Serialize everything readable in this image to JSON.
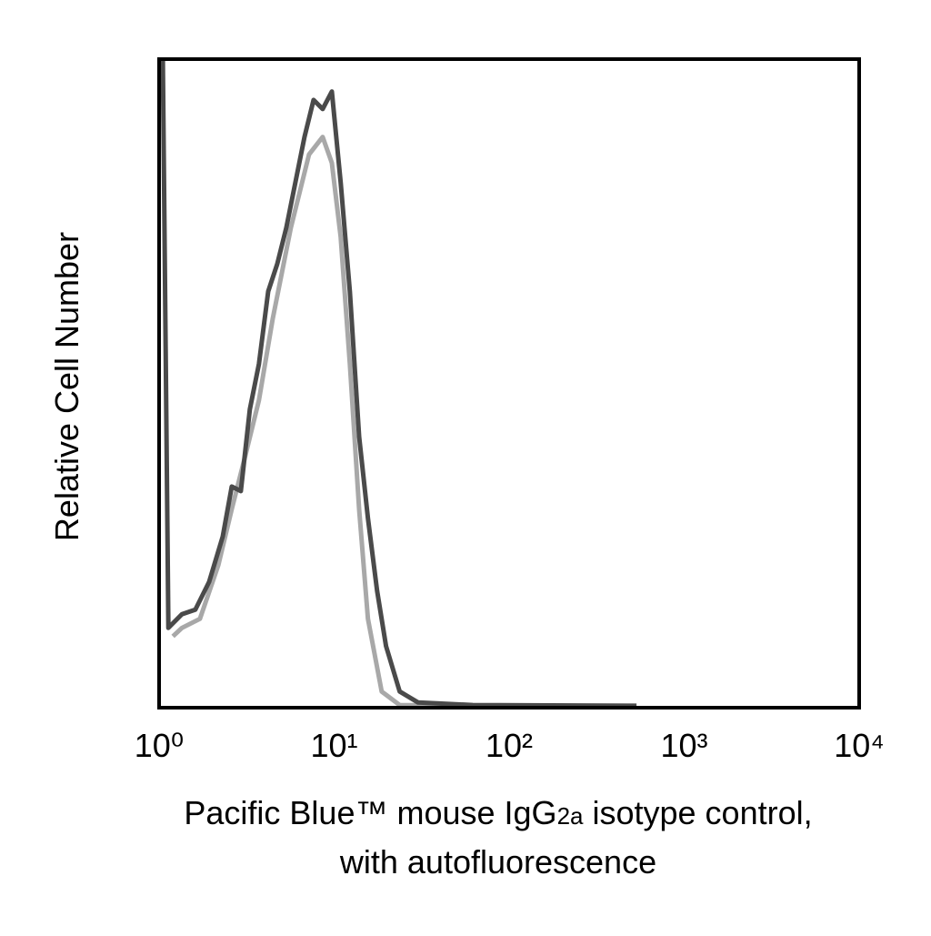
{
  "chart_data": {
    "type": "line",
    "ylabel": "Relative Cell Number",
    "xlabel": {
      "line1": [
        "Pacific Blue™ mouse IgG",
        "2a",
        " isotype control,"
      ],
      "line2": "with autofluorescence"
    },
    "xscale": "log",
    "xlim": [
      1,
      10000
    ],
    "xticks": [
      {
        "value": 1,
        "label": "10⁰"
      },
      {
        "value": 10,
        "label": "10¹"
      },
      {
        "value": 100,
        "label": "10²"
      },
      {
        "value": 1000,
        "label": "10³"
      },
      {
        "value": 10000,
        "label": "10⁴"
      }
    ],
    "ylim": [
      0,
      100
    ],
    "series": [
      {
        "color": "#a8a8a8",
        "x": [
          1.2,
          1.35,
          1.71,
          2.18,
          2.6,
          3.12,
          3.72,
          4.46,
          5.66,
          7.19,
          8.6,
          9.7,
          10.9,
          12.3,
          13.9,
          15.6,
          18.7,
          23.7,
          161
        ],
        "values": [
          11,
          12.3,
          13.7,
          22,
          30.6,
          39,
          47.4,
          60,
          74,
          85.3,
          88,
          84,
          72.6,
          53,
          30.6,
          13.7,
          2.5,
          0.4,
          0.3
        ]
      },
      {
        "color": "#4a4a4a",
        "x": [
          1.05,
          1.13,
          1.35,
          1.61,
          1.93,
          2.31,
          2.6,
          2.93,
          3.3,
          3.72,
          4.2,
          4.73,
          5.33,
          6.01,
          6.77,
          7.63,
          8.6,
          9.7,
          10.9,
          12.3,
          13.9,
          15.6,
          17.6,
          19.8,
          23.7,
          30.2,
          62,
          534
        ],
        "values": [
          100,
          12.3,
          14.4,
          15.1,
          19.4,
          26.4,
          34.1,
          33.4,
          46,
          53,
          64.2,
          68.4,
          74,
          81,
          88,
          93.7,
          92.3,
          95,
          81,
          64.2,
          41.8,
          29.2,
          18,
          9.5,
          2.5,
          0.8,
          0.4,
          0.3
        ]
      }
    ]
  }
}
